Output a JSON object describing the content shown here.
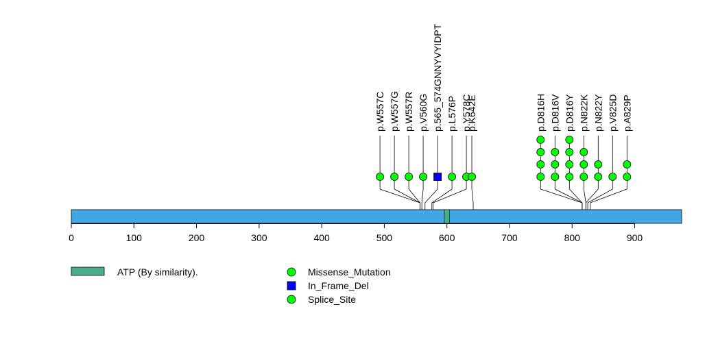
{
  "chart_data": {
    "type": "scatter",
    "title": "",
    "xlabel": "",
    "ylabel": "",
    "xlim": [
      0,
      975
    ],
    "protein_length": 975,
    "x_ticks": [
      0,
      100,
      200,
      300,
      400,
      500,
      600,
      700,
      800,
      900
    ],
    "colors": {
      "backbone": "#41A6E2",
      "domain": "#4AAE8A",
      "missense": "#00FF00",
      "in_frame_del": "#0000FF",
      "splice_site": "#00FF00",
      "stroke": "#000000"
    },
    "domains": [
      {
        "label": "ATP (By similarity).",
        "start": 596,
        "end": 604
      }
    ],
    "mutations": [
      {
        "label": "p.W557C",
        "position": 557,
        "count": 1,
        "type": "Missense_Mutation"
      },
      {
        "label": "p.W557G",
        "position": 557,
        "count": 1,
        "type": "Missense_Mutation"
      },
      {
        "label": "p.W557R",
        "position": 557,
        "count": 1,
        "type": "Missense_Mutation"
      },
      {
        "label": "p.V560G",
        "position": 560,
        "count": 1,
        "type": "Missense_Mutation"
      },
      {
        "label": "p.565_574GNNYVYIDPT",
        "position": 565,
        "count": 1,
        "type": "In_Frame_Del"
      },
      {
        "label": "p.L576P",
        "position": 576,
        "count": 1,
        "type": "Missense_Mutation"
      },
      {
        "label": "p.Y578C",
        "position": 578,
        "count": 1,
        "type": "Missense_Mutation"
      },
      {
        "label": "p.K642E",
        "position": 642,
        "count": 1,
        "type": "Missense_Mutation"
      },
      {
        "label": "p.D816H",
        "position": 816,
        "count": 4,
        "type": "Missense_Mutation"
      },
      {
        "label": "p.D816V",
        "position": 816,
        "count": 3,
        "type": "Missense_Mutation"
      },
      {
        "label": "p.D816Y",
        "position": 816,
        "count": 4,
        "type": "Missense_Mutation"
      },
      {
        "label": "p.N822K",
        "position": 822,
        "count": 3,
        "type": "Missense_Mutation"
      },
      {
        "label": "p.N822Y",
        "position": 822,
        "count": 2,
        "type": "Missense_Mutation"
      },
      {
        "label": "p.V825D",
        "position": 825,
        "count": 1,
        "type": "Missense_Mutation"
      },
      {
        "label": "p.A829P",
        "position": 829,
        "count": 2,
        "type": "Missense_Mutation"
      }
    ],
    "legend": {
      "domain_entries": [
        {
          "label": "ATP (By similarity).",
          "color": "#4AAE8A"
        }
      ],
      "mutation_entries": [
        {
          "label": "Missense_Mutation",
          "shape": "circle",
          "color": "#00FF00"
        },
        {
          "label": "In_Frame_Del",
          "shape": "square",
          "color": "#0000FF"
        },
        {
          "label": "Splice_Site",
          "shape": "circle",
          "color": "#00FF00"
        }
      ]
    }
  }
}
